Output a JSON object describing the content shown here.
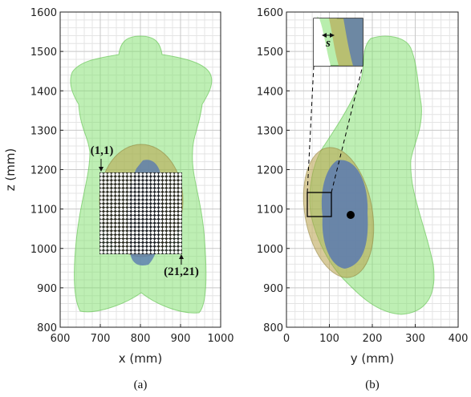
{
  "chart_data": [
    {
      "type": "image",
      "xlabel": "x (mm)",
      "ylabel": "z (mm)",
      "xlim": [
        600,
        1000
      ],
      "ylim": [
        800,
        1600
      ],
      "xticks": [
        600,
        700,
        800,
        900,
        1000
      ],
      "yticks": [
        800,
        900,
        1000,
        1100,
        1200,
        1300,
        1400,
        1500,
        1600
      ],
      "grid": true,
      "caption": "(a)",
      "annotations": [
        "(1,1)",
        "(21,21)"
      ]
    },
    {
      "type": "image",
      "xlabel": "y (mm)",
      "xlim": [
        0,
        400
      ],
      "ylim": [
        800,
        1600
      ],
      "xticks": [
        0,
        100,
        200,
        300,
        400
      ],
      "yticks": [
        800,
        900,
        1000,
        1100,
        1200,
        1300,
        1400,
        1500,
        1600
      ],
      "grid": true,
      "caption": "(b)",
      "annotations": [
        "s"
      ]
    }
  ]
}
